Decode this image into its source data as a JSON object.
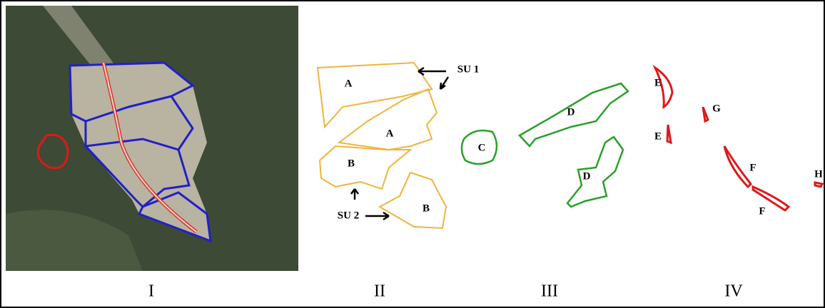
{
  "panel_labels": [
    "I",
    "II",
    "III",
    "IV"
  ],
  "panel_2": {
    "shape_labels": [
      "A",
      "A",
      "B",
      "B"
    ],
    "annotations": [
      "SU 1",
      "SU 2"
    ]
  },
  "panel_3": {
    "shape_labels": [
      "C",
      "D",
      "D"
    ]
  },
  "panel_4": {
    "shape_labels": [
      "E",
      "E",
      "G",
      "F",
      "F",
      "H"
    ]
  }
}
